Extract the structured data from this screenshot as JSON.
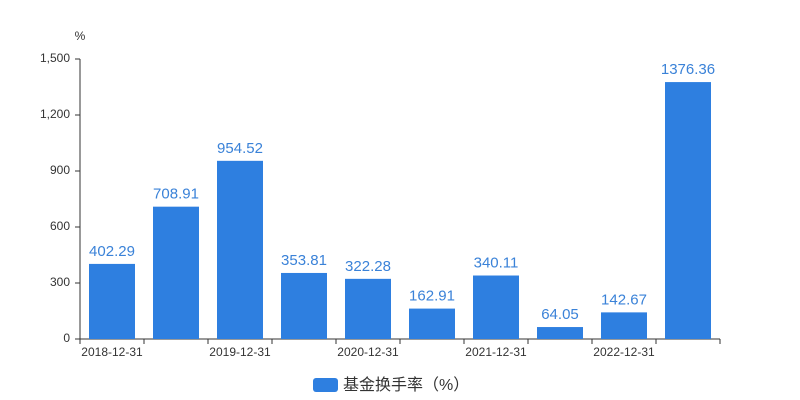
{
  "chart_data": {
    "type": "bar",
    "y_unit": "%",
    "categories": [
      "2018-12-31",
      null,
      "2019-12-31",
      null,
      "2020-12-31",
      null,
      "2021-12-31",
      null,
      "2022-12-31",
      null
    ],
    "values": [
      402.29,
      708.91,
      954.52,
      353.81,
      322.28,
      162.91,
      340.11,
      64.05,
      142.67,
      1376.36
    ],
    "color": "#2e7fe0",
    "label_color": "#3a82d8",
    "ylim": [
      0,
      1500
    ],
    "yticks": [
      0,
      300,
      600,
      900,
      {
        "value": 1200,
        "label": "1,200"
      },
      {
        "value": 1500,
        "label": "1,500"
      }
    ],
    "grid": false,
    "legend": {
      "name": "基金换手率（%）",
      "position": "bottom"
    }
  }
}
